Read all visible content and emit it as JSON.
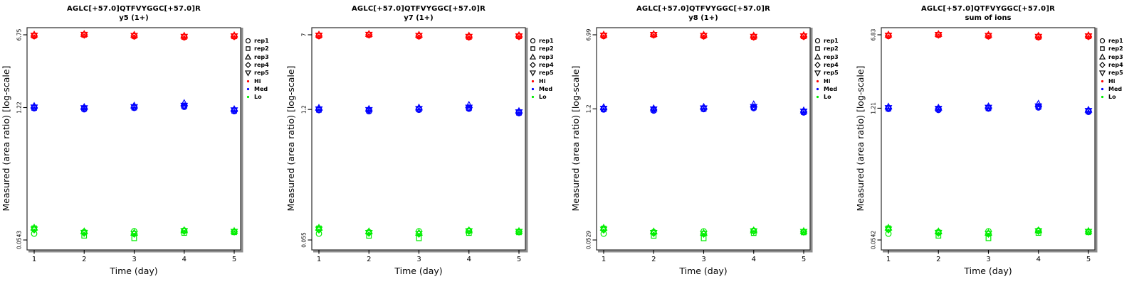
{
  "colors": {
    "hi": "#ff0000",
    "med": "#0000ff",
    "lo": "#00ee00",
    "box": "#2b2b2b",
    "shadow": "#8c8c8c"
  },
  "legend_items": [
    {
      "label": "rep1",
      "symbol": "circle",
      "color": "#000000"
    },
    {
      "label": "rep2",
      "symbol": "square",
      "color": "#000000"
    },
    {
      "label": "rep3",
      "symbol": "triangle-up",
      "color": "#000000"
    },
    {
      "label": "rep4",
      "symbol": "diamond",
      "color": "#000000"
    },
    {
      "label": "rep5",
      "symbol": "triangle-down",
      "color": "#000000"
    },
    {
      "label": "Hi",
      "symbol": "dot",
      "color": "#ff0000"
    },
    {
      "label": "Med",
      "symbol": "dot",
      "color": "#0000ff"
    },
    {
      "label": "Lo",
      "symbol": "dot",
      "color": "#00ee00"
    }
  ],
  "chart_data": [
    {
      "type": "scatter",
      "title": "AGLC[+57.0]QTFVYGGC[+57.0]R",
      "subtitle": "y5 (1+)",
      "xlabel": "Time (day)",
      "ylabel": "Measured (area ratio) [log-scale]",
      "y_scale": "log",
      "x_ticks": [
        "1",
        "2",
        "3",
        "4",
        "5"
      ],
      "x_values": [
        1,
        2,
        3,
        4,
        5
      ],
      "y_ticks": [
        {
          "value": 6.75,
          "label": "6.75"
        },
        {
          "value": 1.22,
          "label": "1.22"
        },
        {
          "value": 0.0543,
          "label": "0.0543"
        }
      ],
      "series": [
        {
          "name": "Hi",
          "color": "#ff0000",
          "reps": [
            {
              "name": "rep1",
              "symbol": "circle",
              "values": [
                6.55,
                6.72,
                6.51,
                6.38,
                6.48
              ]
            },
            {
              "name": "rep2",
              "symbol": "square",
              "values": [
                6.62,
                6.75,
                6.58,
                6.41,
                6.51
              ]
            },
            {
              "name": "rep3",
              "symbol": "triangle-up",
              "values": [
                6.75,
                6.85,
                6.72,
                6.58,
                6.65
              ]
            },
            {
              "name": "rep4",
              "symbol": "diamond",
              "values": [
                6.58,
                6.75,
                6.55,
                6.41,
                6.49
              ]
            },
            {
              "name": "rep5",
              "symbol": "triangle-down",
              "values": [
                6.65,
                6.78,
                6.62,
                6.47,
                6.55
              ]
            }
          ]
        },
        {
          "name": "Med",
          "color": "#0000ff",
          "reps": [
            {
              "name": "rep1",
              "symbol": "circle",
              "values": [
                1.2,
                1.17,
                1.21,
                1.24,
                1.12
              ]
            },
            {
              "name": "rep2",
              "symbol": "square",
              "values": [
                1.21,
                1.19,
                1.22,
                1.26,
                1.13
              ]
            },
            {
              "name": "rep3",
              "symbol": "triangle-up",
              "values": [
                1.26,
                1.23,
                1.27,
                1.35,
                1.17
              ]
            },
            {
              "name": "rep4",
              "symbol": "diamond",
              "values": [
                1.22,
                1.2,
                1.23,
                1.27,
                1.14
              ]
            },
            {
              "name": "rep5",
              "symbol": "triangle-down",
              "values": [
                1.23,
                1.21,
                1.24,
                1.28,
                1.15
              ]
            }
          ]
        },
        {
          "name": "Lo",
          "color": "#00ee00",
          "reps": [
            {
              "name": "rep1",
              "symbol": "circle",
              "values": [
                0.063,
                0.0655,
                0.0668,
                0.0678,
                0.066
              ]
            },
            {
              "name": "rep2",
              "symbol": "square",
              "values": [
                0.0715,
                0.06,
                0.0565,
                0.064,
                0.065
              ]
            },
            {
              "name": "rep3",
              "symbol": "triangle-up",
              "values": [
                0.0722,
                0.0662,
                0.064,
                0.068,
                0.0668
              ]
            },
            {
              "name": "rep4",
              "symbol": "diamond",
              "values": [
                0.069,
                0.0638,
                0.0625,
                0.0668,
                0.066
              ]
            },
            {
              "name": "rep5",
              "symbol": "triangle-down",
              "values": [
                0.0698,
                0.0645,
                0.0632,
                0.0672,
                0.0662
              ]
            }
          ]
        }
      ]
    },
    {
      "type": "scatter",
      "title": "AGLC[+57.0]QTFVYGGC[+57.0]R",
      "subtitle": "y7 (1+)",
      "xlabel": "Time (day)",
      "ylabel": "Measured (area ratio) [log-scale]",
      "y_scale": "log",
      "x_ticks": [
        "1",
        "2",
        "3",
        "4",
        "5"
      ],
      "x_values": [
        1,
        2,
        3,
        4,
        5
      ],
      "y_ticks": [
        {
          "value": 7,
          "label": "7"
        },
        {
          "value": 1.2,
          "label": "1.2"
        },
        {
          "value": 0.055,
          "label": "0.055"
        }
      ],
      "series": [
        {
          "name": "Hi",
          "color": "#ff0000",
          "reps": [
            {
              "name": "rep1",
              "symbol": "circle",
              "values": [
                6.79,
                6.97,
                6.76,
                6.62,
                6.72
              ]
            },
            {
              "name": "rep2",
              "symbol": "square",
              "values": [
                6.86,
                7.0,
                6.83,
                6.65,
                6.76
              ]
            },
            {
              "name": "rep3",
              "symbol": "triangle-up",
              "values": [
                7.0,
                7.11,
                6.97,
                6.83,
                6.9
              ]
            },
            {
              "name": "rep4",
              "symbol": "diamond",
              "values": [
                6.83,
                7.0,
                6.79,
                6.65,
                6.73
              ]
            },
            {
              "name": "rep5",
              "symbol": "triangle-down",
              "values": [
                6.9,
                7.04,
                6.86,
                6.71,
                6.79
              ]
            }
          ]
        },
        {
          "name": "Med",
          "color": "#0000ff",
          "reps": [
            {
              "name": "rep1",
              "symbol": "circle",
              "values": [
                1.18,
                1.15,
                1.19,
                1.22,
                1.1
              ]
            },
            {
              "name": "rep2",
              "symbol": "square",
              "values": [
                1.19,
                1.17,
                1.2,
                1.24,
                1.11
              ]
            },
            {
              "name": "rep3",
              "symbol": "triangle-up",
              "values": [
                1.24,
                1.21,
                1.25,
                1.33,
                1.15
              ]
            },
            {
              "name": "rep4",
              "symbol": "diamond",
              "values": [
                1.2,
                1.18,
                1.21,
                1.25,
                1.12
              ]
            },
            {
              "name": "rep5",
              "symbol": "triangle-down",
              "values": [
                1.21,
                1.19,
                1.22,
                1.26,
                1.13
              ]
            }
          ]
        },
        {
          "name": "Lo",
          "color": "#00ee00",
          "reps": [
            {
              "name": "rep1",
              "symbol": "circle",
              "values": [
                0.0638,
                0.0663,
                0.0676,
                0.0686,
                0.0668
              ]
            },
            {
              "name": "rep2",
              "symbol": "square",
              "values": [
                0.0724,
                0.0607,
                0.0572,
                0.0648,
                0.0658
              ]
            },
            {
              "name": "rep3",
              "symbol": "triangle-up",
              "values": [
                0.0731,
                0.067,
                0.0648,
                0.0688,
                0.0676
              ]
            },
            {
              "name": "rep4",
              "symbol": "diamond",
              "values": [
                0.0699,
                0.0646,
                0.0633,
                0.0676,
                0.0668
              ]
            },
            {
              "name": "rep5",
              "symbol": "triangle-down",
              "values": [
                0.0707,
                0.0653,
                0.064,
                0.068,
                0.067
              ]
            }
          ]
        }
      ]
    },
    {
      "type": "scatter",
      "title": "AGLC[+57.0]QTFVYGGC[+57.0]R",
      "subtitle": "y8 (1+)",
      "xlabel": "Time (day)",
      "ylabel": "Measured (area ratio) [log-scale]",
      "y_scale": "log",
      "x_ticks": [
        "1",
        "2",
        "3",
        "4",
        "5"
      ],
      "x_values": [
        1,
        2,
        3,
        4,
        5
      ],
      "y_ticks": [
        {
          "value": 6.99,
          "label": "6.99"
        },
        {
          "value": 1.2,
          "label": "1.2"
        },
        {
          "value": 0.0529,
          "label": "0.0529"
        }
      ],
      "series": [
        {
          "name": "Hi",
          "color": "#ff0000",
          "reps": [
            {
              "name": "rep1",
              "symbol": "circle",
              "values": [
                6.78,
                6.96,
                6.75,
                6.61,
                6.71
              ]
            },
            {
              "name": "rep2",
              "symbol": "square",
              "values": [
                6.85,
                6.99,
                6.82,
                6.64,
                6.75
              ]
            },
            {
              "name": "rep3",
              "symbol": "triangle-up",
              "values": [
                6.99,
                7.09,
                6.96,
                6.82,
                6.89
              ]
            },
            {
              "name": "rep4",
              "symbol": "diamond",
              "values": [
                6.82,
                6.99,
                6.78,
                6.64,
                6.72
              ]
            },
            {
              "name": "rep5",
              "symbol": "triangle-down",
              "values": [
                6.89,
                7.02,
                6.85,
                6.7,
                6.78
              ]
            }
          ]
        },
        {
          "name": "Med",
          "color": "#0000ff",
          "reps": [
            {
              "name": "rep1",
              "symbol": "circle",
              "values": [
                1.18,
                1.15,
                1.19,
                1.22,
                1.1
              ]
            },
            {
              "name": "rep2",
              "symbol": "square",
              "values": [
                1.19,
                1.17,
                1.2,
                1.24,
                1.11
              ]
            },
            {
              "name": "rep3",
              "symbol": "triangle-up",
              "values": [
                1.24,
                1.21,
                1.25,
                1.33,
                1.15
              ]
            },
            {
              "name": "rep4",
              "symbol": "diamond",
              "values": [
                1.2,
                1.18,
                1.21,
                1.25,
                1.12
              ]
            },
            {
              "name": "rep5",
              "symbol": "triangle-down",
              "values": [
                1.21,
                1.19,
                1.22,
                1.26,
                1.13
              ]
            }
          ]
        },
        {
          "name": "Lo",
          "color": "#00ee00",
          "reps": [
            {
              "name": "rep1",
              "symbol": "circle",
              "values": [
                0.0614,
                0.0638,
                0.0651,
                0.066,
                0.0643
              ]
            },
            {
              "name": "rep2",
              "symbol": "square",
              "values": [
                0.0696,
                0.0584,
                0.055,
                0.0623,
                0.0633
              ]
            },
            {
              "name": "rep3",
              "symbol": "triangle-up",
              "values": [
                0.0703,
                0.0645,
                0.0623,
                0.0662,
                0.0651
              ]
            },
            {
              "name": "rep4",
              "symbol": "diamond",
              "values": [
                0.0672,
                0.0621,
                0.0609,
                0.0651,
                0.0643
              ]
            },
            {
              "name": "rep5",
              "symbol": "triangle-down",
              "values": [
                0.068,
                0.0628,
                0.0615,
                0.0654,
                0.0645
              ]
            }
          ]
        }
      ]
    },
    {
      "type": "scatter",
      "title": "AGLC[+57.0]QTFVYGGC[+57.0]R",
      "subtitle": "sum of ions",
      "xlabel": "Time (day)",
      "ylabel": "Measured (area ratio) [log-scale]",
      "y_scale": "log",
      "x_ticks": [
        "1",
        "2",
        "3",
        "4",
        "5"
      ],
      "x_values": [
        1,
        2,
        3,
        4,
        5
      ],
      "y_ticks": [
        {
          "value": 6.83,
          "label": "6.83"
        },
        {
          "value": 1.21,
          "label": "1.21"
        },
        {
          "value": 0.0542,
          "label": "0.0542"
        }
      ],
      "series": [
        {
          "name": "Hi",
          "color": "#ff0000",
          "reps": [
            {
              "name": "rep1",
              "symbol": "circle",
              "values": [
                6.63,
                6.8,
                6.59,
                6.45,
                6.56
              ]
            },
            {
              "name": "rep2",
              "symbol": "square",
              "values": [
                6.7,
                6.83,
                6.66,
                6.49,
                6.59
              ]
            },
            {
              "name": "rep3",
              "symbol": "triangle-up",
              "values": [
                6.83,
                6.93,
                6.8,
                6.66,
                6.73
              ]
            },
            {
              "name": "rep4",
              "symbol": "diamond",
              "values": [
                6.66,
                6.83,
                6.63,
                6.49,
                6.57
              ]
            },
            {
              "name": "rep5",
              "symbol": "triangle-down",
              "values": [
                6.73,
                6.86,
                6.7,
                6.55,
                6.63
              ]
            }
          ]
        },
        {
          "name": "Med",
          "color": "#0000ff",
          "reps": [
            {
              "name": "rep1",
              "symbol": "circle",
              "values": [
                1.19,
                1.16,
                1.2,
                1.23,
                1.11
              ]
            },
            {
              "name": "rep2",
              "symbol": "square",
              "values": [
                1.2,
                1.18,
                1.21,
                1.25,
                1.12
              ]
            },
            {
              "name": "rep3",
              "symbol": "triangle-up",
              "values": [
                1.25,
                1.22,
                1.26,
                1.34,
                1.16
              ]
            },
            {
              "name": "rep4",
              "symbol": "diamond",
              "values": [
                1.21,
                1.19,
                1.22,
                1.26,
                1.13
              ]
            },
            {
              "name": "rep5",
              "symbol": "triangle-down",
              "values": [
                1.22,
                1.2,
                1.23,
                1.27,
                1.14
              ]
            }
          ]
        },
        {
          "name": "Lo",
          "color": "#00ee00",
          "reps": [
            {
              "name": "rep1",
              "symbol": "circle",
              "values": [
                0.0629,
                0.0654,
                0.0667,
                0.0677,
                0.0659
              ]
            },
            {
              "name": "rep2",
              "symbol": "square",
              "values": [
                0.0714,
                0.0599,
                0.0564,
                0.0639,
                0.0649
              ]
            },
            {
              "name": "rep3",
              "symbol": "triangle-up",
              "values": [
                0.0721,
                0.0661,
                0.0639,
                0.0679,
                0.0667
              ]
            },
            {
              "name": "rep4",
              "symbol": "diamond",
              "values": [
                0.0689,
                0.0637,
                0.0624,
                0.0667,
                0.0659
              ]
            },
            {
              "name": "rep5",
              "symbol": "triangle-down",
              "values": [
                0.0697,
                0.0644,
                0.0631,
                0.0671,
                0.0661
              ]
            }
          ]
        }
      ]
    }
  ]
}
